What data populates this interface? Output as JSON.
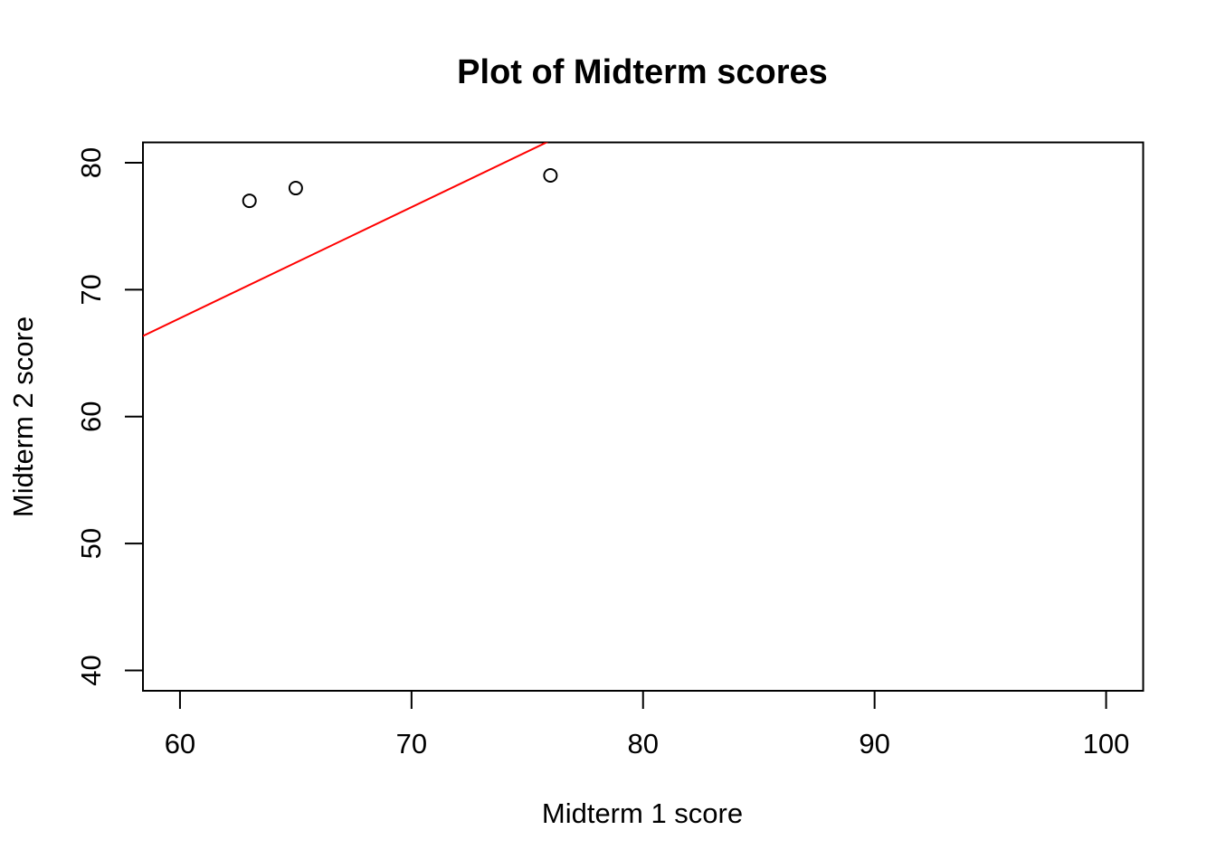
{
  "chart_data": {
    "type": "scatter",
    "title": "Plot of Midterm scores",
    "xlabel": "Midterm 1 score",
    "ylabel": "Midterm 2 score",
    "xlim": [
      58.4,
      101.6
    ],
    "ylim": [
      38.4,
      81.6
    ],
    "x_ticks": [
      60,
      70,
      80,
      90,
      100
    ],
    "y_ticks": [
      40,
      50,
      60,
      70,
      80
    ],
    "x_tick_labels": [
      "60",
      "70",
      "80",
      "90",
      "100"
    ],
    "y_tick_labels": [
      "40",
      "50",
      "60",
      "70",
      "80"
    ],
    "points": [
      {
        "x": 63,
        "y": 77
      },
      {
        "x": 65,
        "y": 78
      },
      {
        "x": 76,
        "y": 79
      }
    ],
    "fit_line": {
      "type": "abline",
      "intercept": 15.25,
      "slope": 0.875,
      "color": "#ff0000"
    },
    "grid": false,
    "legend": "none"
  }
}
